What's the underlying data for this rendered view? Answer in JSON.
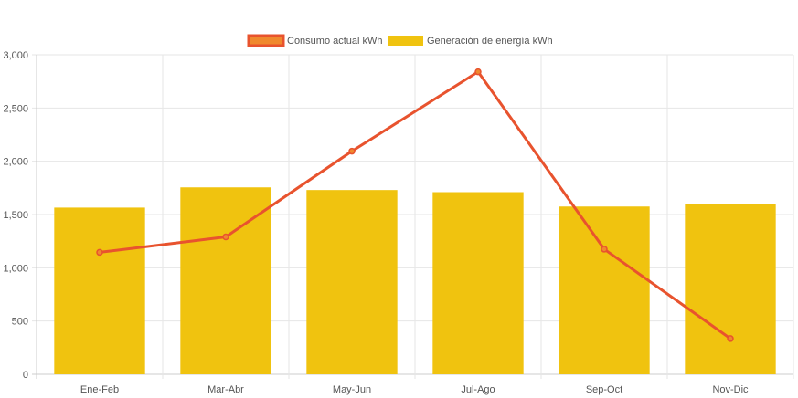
{
  "chart_data": {
    "type": "bar",
    "categories": [
      "Ene-Feb",
      "Mar-Abr",
      "May-Jun",
      "Jul-Ago",
      "Sep-Oct",
      "Nov-Dic"
    ],
    "series": [
      {
        "name": "Consumo actual kWh",
        "kind": "line",
        "color": "#e8532e",
        "legend_fill": "#f0892e",
        "values": [
          1145,
          1290,
          2095,
          2840,
          1175,
          335
        ]
      },
      {
        "name": "Generación de energía kWh",
        "kind": "bar",
        "color": "#f0c30f",
        "values": [
          1565,
          1755,
          1730,
          1710,
          1575,
          1595
        ]
      }
    ],
    "ylim": [
      0,
      3000
    ],
    "yticks": [
      0,
      500,
      1000,
      1500,
      2000,
      2500,
      3000
    ],
    "ytick_labels": [
      "0",
      "500",
      "1,000",
      "1,500",
      "2,000",
      "2,500",
      "3,000"
    ],
    "grid": true,
    "legend": "top-center",
    "title": "",
    "xlabel": "",
    "ylabel": ""
  }
}
